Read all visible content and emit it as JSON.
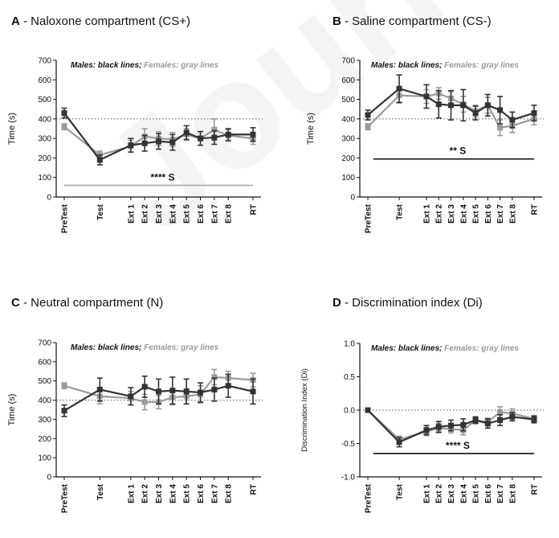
{
  "watermark": "Journal",
  "chart_data": [
    {
      "type": "line",
      "letter": "A",
      "title": " - Naloxone compartment (CS+)",
      "ylabel": "Time (s)",
      "legend": {
        "males": "Males: black lines;",
        "females": " Females: gray lines"
      },
      "ylim": [
        0,
        700
      ],
      "yticks": [
        "0",
        "100",
        "200",
        "300",
        "400",
        "500",
        "600",
        "700"
      ],
      "ytick_values": [
        0,
        100,
        200,
        300,
        400,
        500,
        600,
        700
      ],
      "categories": [
        "PreTest",
        "Test",
        "Ext 1",
        "Ext 2",
        "Ext 3",
        "Ext 4",
        "Ext 5",
        "Ext 6",
        "Ext 7",
        "Ext 8",
        "RT"
      ],
      "x": [
        0,
        1.15,
        2.15,
        2.6,
        3.05,
        3.5,
        3.95,
        4.4,
        4.85,
        5.3,
        6.1
      ],
      "reference_line": 400,
      "series": [
        {
          "name": "Males",
          "color": "#333333",
          "values": [
            430,
            190,
            265,
            275,
            285,
            280,
            330,
            300,
            305,
            320,
            320
          ],
          "errors": [
            25,
            25,
            35,
            40,
            40,
            40,
            35,
            35,
            35,
            30,
            35
          ]
        },
        {
          "name": "Females",
          "color": "#9a9a9a",
          "values": [
            360,
            215,
            260,
            310,
            300,
            295,
            320,
            300,
            345,
            315,
            300
          ],
          "errors": [
            15,
            20,
            30,
            40,
            35,
            35,
            30,
            35,
            55,
            30,
            30
          ]
        }
      ],
      "annotation": {
        "text": "**** S",
        "y": 60,
        "x_range": [
          0,
          6.1
        ],
        "color": "#aaaaaa"
      }
    },
    {
      "type": "line",
      "letter": "B",
      "title": " - Saline compartment (CS-)",
      "ylabel": "Time (s)",
      "legend": {
        "males": "Males: black lines;",
        "females": " Females: gray lines"
      },
      "ylim": [
        0,
        700
      ],
      "yticks": [
        "0",
        "100",
        "200",
        "300",
        "400",
        "500",
        "600",
        "700"
      ],
      "ytick_values": [
        0,
        100,
        200,
        300,
        400,
        500,
        600,
        700
      ],
      "categories": [
        "PreTest",
        "Test",
        "Ext 1",
        "Ext 2",
        "Ext 3",
        "Ext 4",
        "Ext 5",
        "Ext 6",
        "Ext 7",
        "Ext 8",
        "RT"
      ],
      "x": [
        0,
        1.15,
        2.15,
        2.6,
        3.05,
        3.5,
        3.95,
        4.4,
        4.85,
        5.3,
        6.1
      ],
      "reference_line": 400,
      "series": [
        {
          "name": "Males",
          "color": "#333333",
          "values": [
            420,
            555,
            515,
            475,
            470,
            470,
            430,
            470,
            445,
            395,
            430
          ],
          "errors": [
            25,
            70,
            60,
            70,
            75,
            80,
            35,
            55,
            70,
            40,
            40
          ]
        },
        {
          "name": "Females",
          "color": "#9a9a9a",
          "values": [
            360,
            520,
            515,
            530,
            505,
            475,
            440,
            470,
            355,
            365,
            400
          ],
          "errors": [
            15,
            40,
            35,
            30,
            35,
            40,
            30,
            40,
            40,
            35,
            30
          ]
        }
      ],
      "annotation": {
        "text": "** S",
        "y": 195,
        "x_range": [
          0.2,
          6.1
        ],
        "color": "#111111"
      }
    },
    {
      "type": "line",
      "letter": "C",
      "title": " - Neutral compartment (N)",
      "ylabel": "Time (s)",
      "legend": {
        "males": "Males: black lines;",
        "females": " Females: gray lines"
      },
      "ylim": [
        0,
        700
      ],
      "yticks": [
        "0",
        "100",
        "200",
        "300",
        "400",
        "500",
        "600",
        "700"
      ],
      "ytick_values": [
        0,
        100,
        200,
        300,
        400,
        500,
        600,
        700
      ],
      "categories": [
        "PreTest",
        "Test",
        "Ext 1",
        "Ext 2",
        "Ext 3",
        "Ext 4",
        "Ext 5",
        "Ext 6",
        "Ext 7",
        "Ext 8",
        "RT"
      ],
      "x": [
        0,
        1.15,
        2.15,
        2.6,
        3.05,
        3.5,
        3.95,
        4.4,
        4.85,
        5.3,
        6.1
      ],
      "reference_line": 400,
      "series": [
        {
          "name": "Males",
          "color": "#333333",
          "values": [
            345,
            455,
            420,
            470,
            445,
            450,
            445,
            440,
            455,
            475,
            445
          ],
          "errors": [
            30,
            60,
            45,
            55,
            65,
            70,
            65,
            50,
            60,
            60,
            65
          ]
        },
        {
          "name": "Females",
          "color": "#9a9a9a",
          "values": [
            475,
            420,
            410,
            390,
            390,
            415,
            420,
            430,
            520,
            515,
            505
          ],
          "errors": [
            15,
            40,
            35,
            40,
            35,
            40,
            40,
            45,
            40,
            35,
            35
          ]
        }
      ]
    },
    {
      "type": "line",
      "letter": "D",
      "title": " - Discrimination index (Di)",
      "ylabel": "Discrimination Index (Di)",
      "legend": {
        "males": "Males: black lines;",
        "females": " Females: gray lines"
      },
      "ylim": [
        -1.0,
        1.0
      ],
      "yticks": [
        "-1.0",
        "-0.5",
        "0.0",
        "0.5",
        "1.0"
      ],
      "ytick_values": [
        -1.0,
        -0.5,
        0.0,
        0.5,
        1.0
      ],
      "categories": [
        "PreTest",
        "Test",
        "Ext 1",
        "Ext 2",
        "Ext 3",
        "Ext 4",
        "Ext 5",
        "Ext 6",
        "Ext 7",
        "Ext 8",
        "RT"
      ],
      "x": [
        0,
        1.15,
        2.15,
        2.6,
        3.05,
        3.5,
        3.95,
        4.4,
        4.85,
        5.3,
        6.1
      ],
      "reference_line": 0,
      "series": [
        {
          "name": "Males",
          "color": "#333333",
          "values": [
            0.0,
            -0.48,
            -0.3,
            -0.25,
            -0.23,
            -0.22,
            -0.15,
            -0.2,
            -0.15,
            -0.1,
            -0.14
          ],
          "errors": [
            0.02,
            0.07,
            0.07,
            0.08,
            0.08,
            0.09,
            0.05,
            0.07,
            0.08,
            0.06,
            0.05
          ]
        },
        {
          "name": "Females",
          "color": "#9a9a9a",
          "values": [
            0.0,
            -0.44,
            -0.32,
            -0.27,
            -0.28,
            -0.3,
            -0.15,
            -0.18,
            -0.03,
            -0.05,
            -0.13
          ],
          "errors": [
            0.02,
            0.05,
            0.06,
            0.07,
            0.06,
            0.07,
            0.05,
            0.06,
            0.08,
            0.07,
            0.05
          ]
        }
      ],
      "annotation": {
        "text": "**** S",
        "y": -0.65,
        "x_range": [
          0.2,
          6.1
        ],
        "color": "#111111"
      }
    }
  ]
}
